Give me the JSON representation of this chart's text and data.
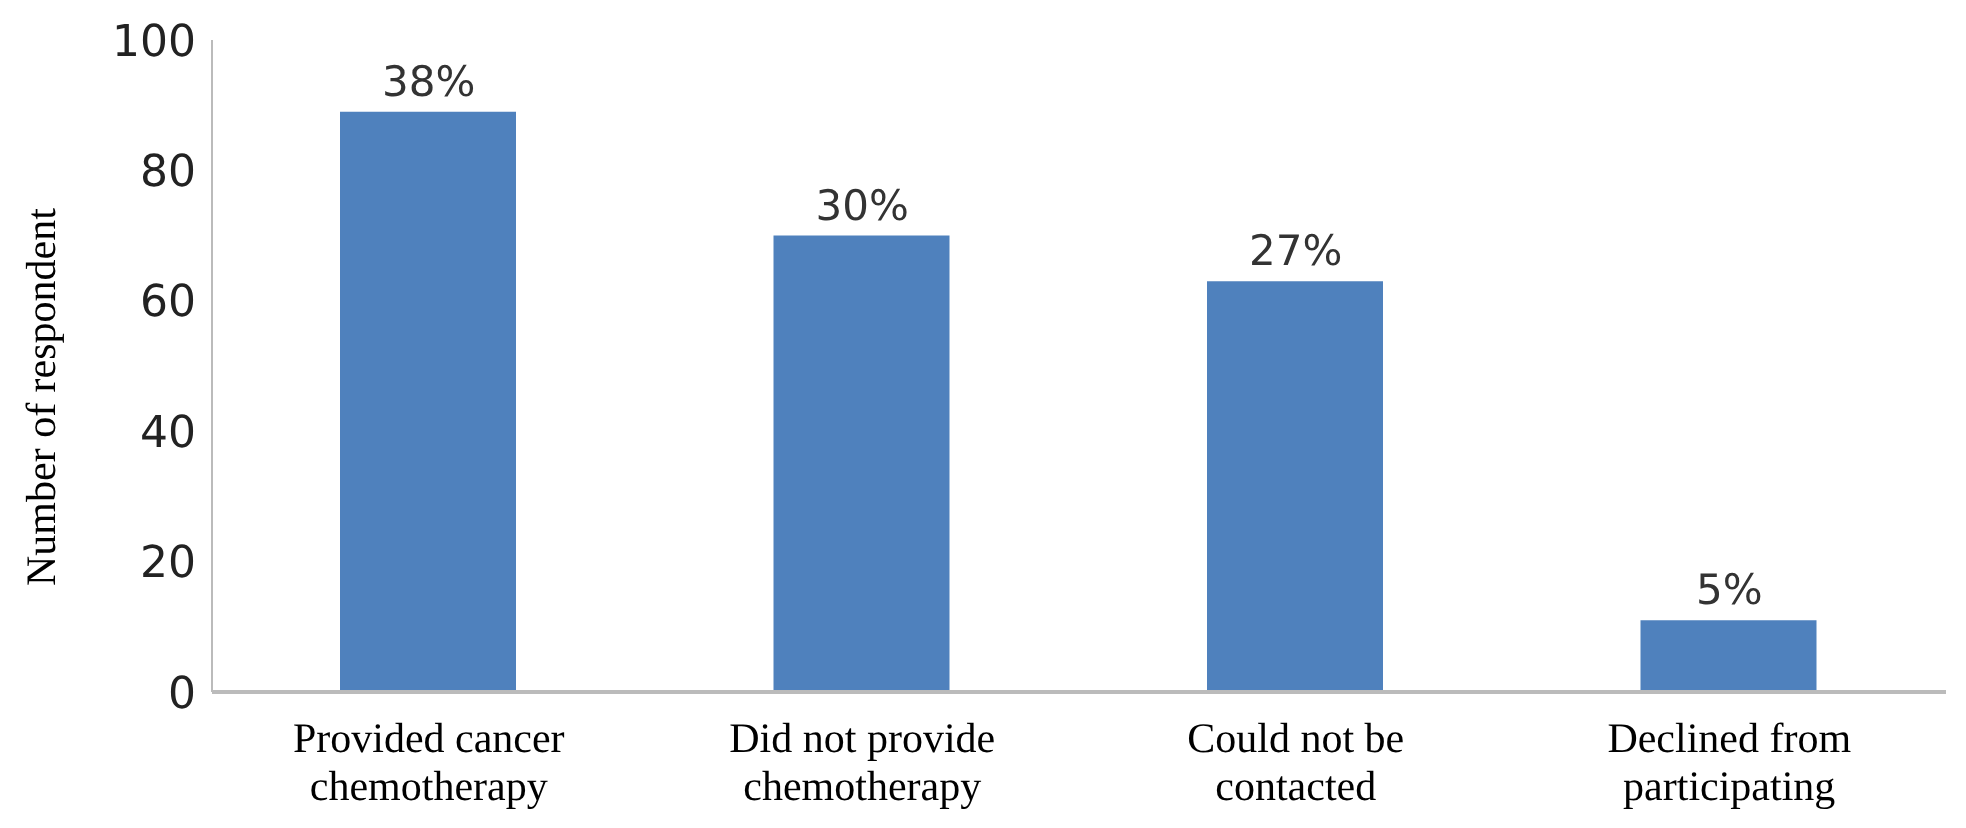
{
  "chart_data": {
    "type": "bar",
    "ylabel": "Number of respondent",
    "categories": [
      "Provided cancer chemotherapy",
      "Did not provide chemotherapy",
      "Could not be contacted",
      "Declined from participating"
    ],
    "values": [
      89,
      70,
      63,
      11
    ],
    "color": "#4f81bd",
    "annotations": [
      {
        "text": "38%",
        "x": "Provided cancer chemotherapy",
        "y": 89
      },
      {
        "text": "30%",
        "x": "Did not provide chemotherapy",
        "y": 70
      },
      {
        "text": "27%",
        "x": "Could not be contacted",
        "y": 63
      },
      {
        "text": "5%",
        "x": "Declined from participating",
        "y": 11
      }
    ],
    "ylim": [
      0,
      100
    ],
    "yticks": [
      0,
      20,
      40,
      60,
      80,
      100
    ],
    "grid": false
  }
}
